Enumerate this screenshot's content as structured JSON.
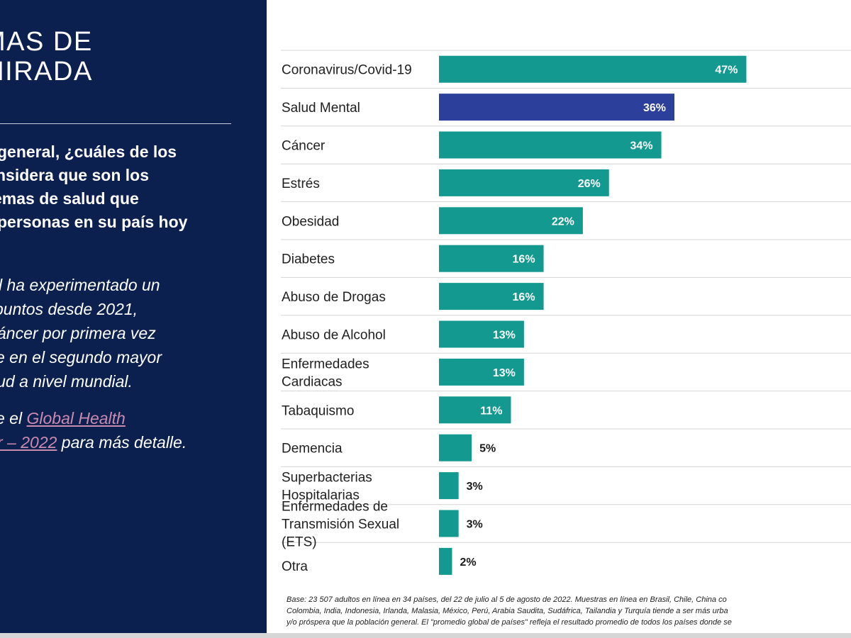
{
  "left_panel": {
    "title_lines": [
      "MAS DE",
      "MIRADA"
    ],
    "question_lines": [
      "general, ¿cuáles de los",
      "nsidera que son los",
      "emas de salud que",
      "personas en su país hoy"
    ],
    "insight_lines": [
      "l ha experimentado un",
      "puntos desde 2021,",
      "áncer por primera vez",
      "e en el segundo mayor",
      "lud a nivel mundial."
    ],
    "reference": {
      "prefix": "e el ",
      "link_part1": "Global Health",
      "link_part2": "r – 2022",
      "suffix": " para más detalle."
    }
  },
  "colors": {
    "panel_bg": "#0c2050",
    "bar_teal": "#13998f",
    "bar_highlight": "#2c3f9a",
    "link": "#c98bb0"
  },
  "chart_data": {
    "type": "bar",
    "orientation": "horizontal",
    "categories": [
      "Coronavirus/Covid-19",
      "Salud Mental",
      "Cáncer",
      "Estrés",
      "Obesidad",
      "Diabetes",
      "Abuso de Drogas",
      "Abuso de Alcohol",
      "Enfermedades Cardiacas",
      "Tabaquismo",
      "Demencia",
      "Superbacterias Hospitalarias",
      "Enfermedades de Transmisión Sexual (ETS)",
      "Otra"
    ],
    "category_label_lines": [
      [
        "Coronavirus/Covid-19"
      ],
      [
        "Salud Mental"
      ],
      [
        "Cáncer"
      ],
      [
        "Estrés"
      ],
      [
        "Obesidad"
      ],
      [
        "Diabetes"
      ],
      [
        "Abuso de Drogas"
      ],
      [
        "Abuso de Alcohol"
      ],
      [
        "Enfermedades",
        "Cardiacas"
      ],
      [
        "Tabaquismo"
      ],
      [
        "Demencia"
      ],
      [
        "Superbacterias",
        "Hospitalarias"
      ],
      [
        "Enfermedades de",
        "Transmisión Sexual",
        "(ETS)"
      ],
      [
        "Otra"
      ]
    ],
    "values": [
      47,
      36,
      34,
      26,
      22,
      16,
      16,
      13,
      13,
      11,
      5,
      3,
      3,
      2
    ],
    "value_labels": [
      "47%",
      "36%",
      "34%",
      "26%",
      "22%",
      "16%",
      "16%",
      "13%",
      "13%",
      "11%",
      "5%",
      "3%",
      "3%",
      "2%"
    ],
    "highlight_index": 1,
    "unit": "%",
    "xlim": [
      0,
      63
    ],
    "grid": "horizontal row separators"
  },
  "footnote_lines": [
    "Base:  23 507 adultos en línea en 34 países, del 22 de julio al 5 de agosto de 2022. Muestras en línea en Brasil, Chile, China co",
    "Colombia, India, Indonesia, Irlanda, Malasia, México, Perú, Arabia Saudita, Sudáfrica, Tailandia y Turquía tiende a ser más urba",
    "y/o próspera que la población general. El \"promedio global de países\" refleja el resultado promedio de todos los países donde se"
  ]
}
